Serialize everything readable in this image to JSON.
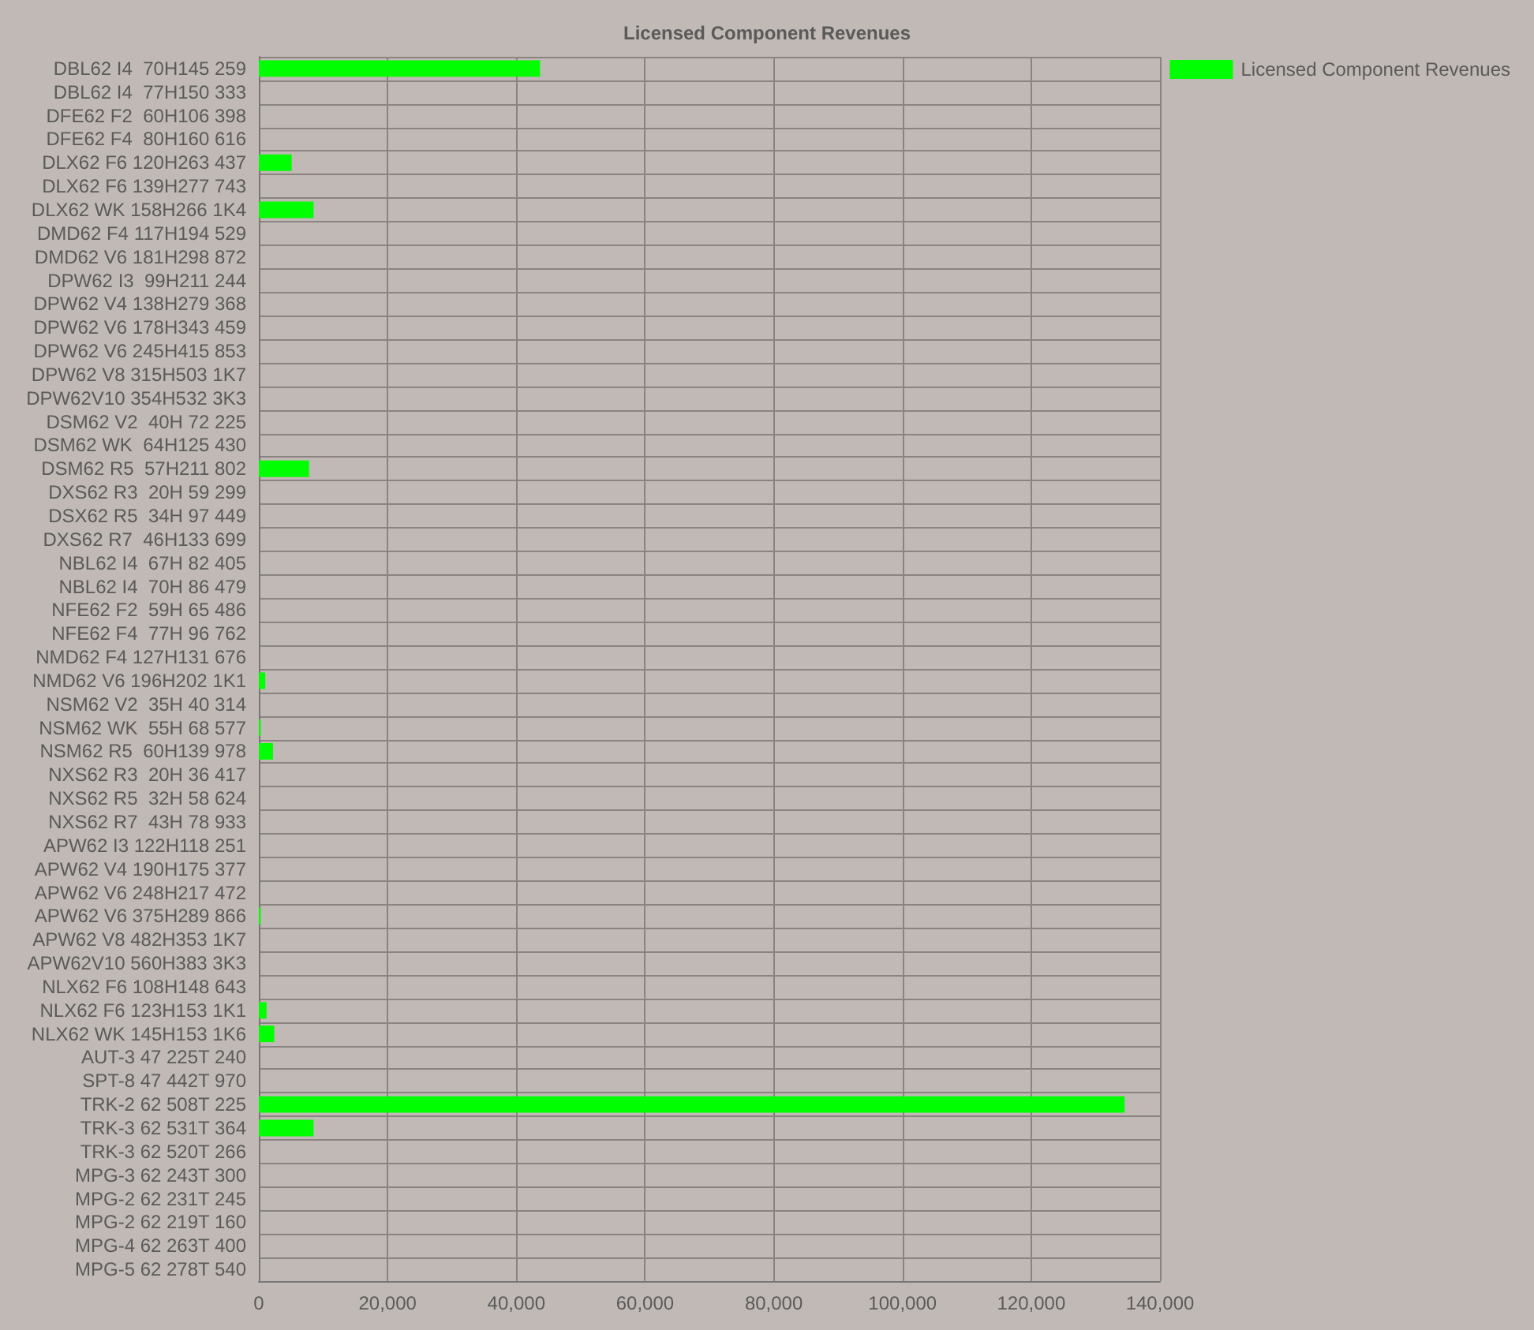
{
  "chart_data": {
    "type": "bar",
    "orientation": "horizontal",
    "title": "Licensed Component Revenues",
    "categories": [
      "DBL62 I4  70H145 259",
      "DBL62 I4  77H150 333",
      "DFE62 F2  60H106 398",
      "DFE62 F4  80H160 616",
      "DLX62 F6 120H263 437",
      "DLX62 F6 139H277 743",
      "DLX62 WK 158H266 1K4",
      "DMD62 F4 117H194 529",
      "DMD62 V6 181H298 872",
      "DPW62 I3  99H211 244",
      "DPW62 V4 138H279 368",
      "DPW62 V6 178H343 459",
      "DPW62 V6 245H415 853",
      "DPW62 V8 315H503 1K7",
      "DPW62V10 354H532 3K3",
      "DSM62 V2  40H 72 225",
      "DSM62 WK  64H125 430",
      "DSM62 R5  57H211 802",
      "DXS62 R3  20H 59 299",
      "DSX62 R5  34H 97 449",
      "DXS62 R7  46H133 699",
      "NBL62 I4  67H 82 405",
      "NBL62 I4  70H 86 479",
      "NFE62 F2  59H 65 486",
      "NFE62 F4  77H 96 762",
      "NMD62 F4 127H131 676",
      "NMD62 V6 196H202 1K1",
      "NSM62 V2  35H 40 314",
      "NSM62 WK  55H 68 577",
      "NSM62 R5  60H139 978",
      "NXS62 R3  20H 36 417",
      "NXS62 R5  32H 58 624",
      "NXS62 R7  43H 78 933",
      "APW62 I3 122H118 251",
      "APW62 V4 190H175 377",
      "APW62 V6 248H217 472",
      "APW62 V6 375H289 866",
      "APW62 V8 482H353 1K7",
      "APW62V10 560H383 3K3",
      "NLX62 F6 108H148 643",
      "NLX62 F6 123H153 1K1",
      "NLX62 WK 145H153 1K6",
      "AUT-3 47 225T 240",
      "SPT-8 47 442T 970",
      "TRK-2 62 508T 225",
      "TRK-3 62 531T 364",
      "TRK-3 62 520T 266",
      "MPG-3 62 243T 300",
      "MPG-2 62 231T 245",
      "MPG-2 62 219T 160",
      "MPG-4 62 263T 400",
      "MPG-5 62 278T 540"
    ],
    "series": [
      {
        "name": "Licensed Component Revenues",
        "color": "#00ff00",
        "values": [
          43700,
          0,
          0,
          0,
          5100,
          0,
          8500,
          0,
          0,
          0,
          0,
          0,
          0,
          0,
          0,
          0,
          0,
          7800,
          0,
          0,
          0,
          0,
          0,
          0,
          0,
          0,
          1000,
          0,
          300,
          2200,
          0,
          0,
          0,
          0,
          0,
          0,
          300,
          0,
          0,
          0,
          1200,
          2400,
          0,
          0,
          134500,
          8500,
          0,
          0,
          0,
          0,
          0,
          0
        ]
      }
    ],
    "xlim": [
      0,
      140000
    ],
    "xticks": [
      0,
      {
        "value": 20000,
        "label": "20,000"
      },
      {
        "value": 40000,
        "label": "40,000"
      },
      {
        "value": 60000,
        "label": "60,000"
      },
      {
        "value": 80000,
        "label": "80,000"
      },
      {
        "value": 100000,
        "label": "100,000"
      },
      {
        "value": 120000,
        "label": "120,000"
      },
      {
        "value": 140000,
        "label": "140,000"
      }
    ],
    "grid": true,
    "legend": "top right"
  }
}
